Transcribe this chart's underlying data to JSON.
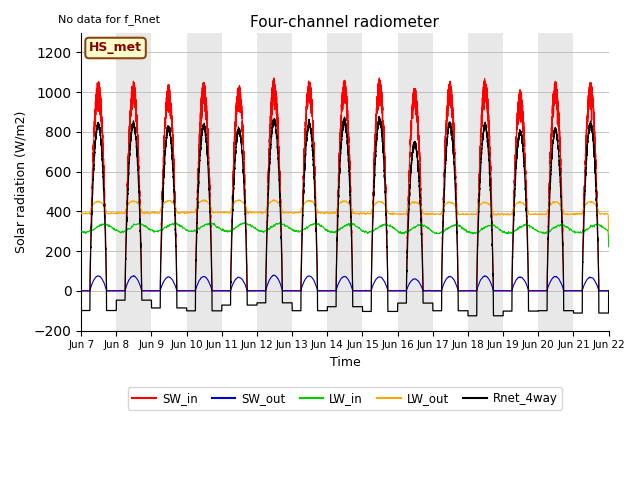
{
  "title": "Four-channel radiometer",
  "subtitle": "No data for f_Rnet",
  "xlabel": "Time",
  "ylabel": "Solar radiation (W/m2)",
  "ylim": [
    -200,
    1300
  ],
  "yticks": [
    -200,
    0,
    200,
    400,
    600,
    800,
    1000,
    1200
  ],
  "station_label": "HS_met",
  "legend_entries": [
    "SW_in",
    "SW_out",
    "LW_in",
    "LW_out",
    "Rnet_4way"
  ],
  "line_colors": [
    "#ff0000",
    "#0000cc",
    "#00cc00",
    "#ffa500",
    "#000000"
  ],
  "n_days": 15,
  "start_day": 7,
  "xtick_labels": [
    "Jun 7",
    "Jun 8",
    "Jun 9",
    "Jun 10",
    "Jun 11",
    "Jun 12",
    "Jun 13",
    "Jun 14",
    "Jun 15",
    "Jun 16",
    "Jun 17",
    "Jun 18",
    "Jun 19",
    "Jun 20",
    "Jun 21",
    "Jun 22"
  ]
}
